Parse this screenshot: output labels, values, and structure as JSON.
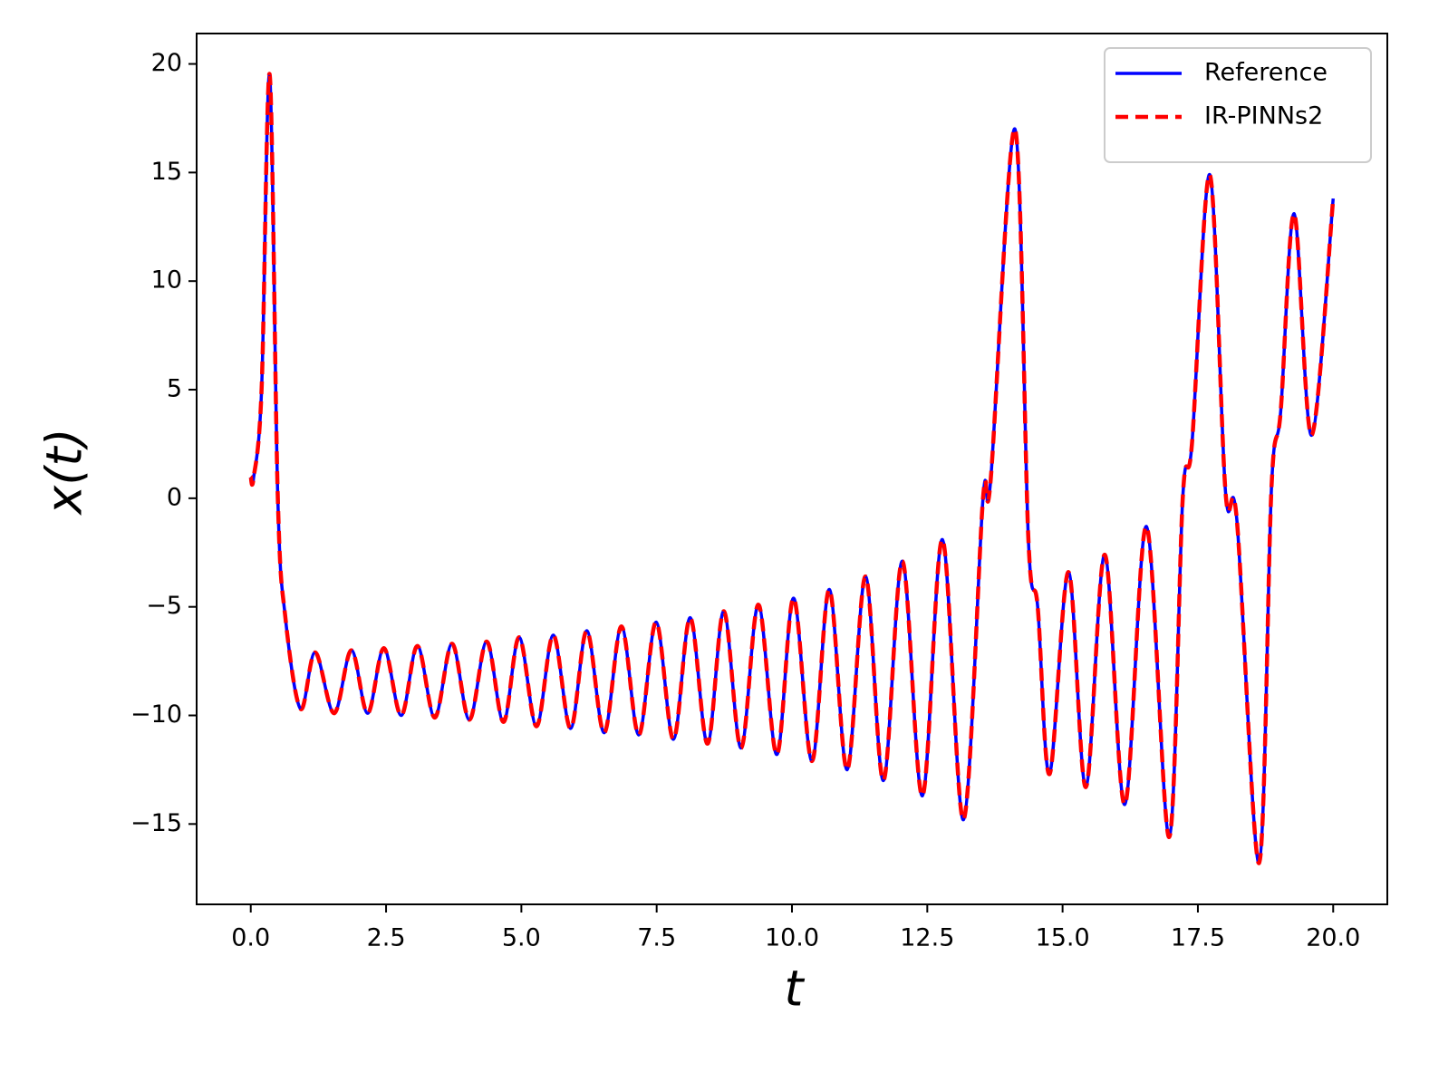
{
  "chart_data": {
    "type": "line",
    "xlabel": "t",
    "ylabel": "x(t)",
    "x": [
      0,
      0.05,
      0.2,
      0.35,
      0.5,
      0.64,
      0.92,
      1.19,
      1.54,
      1.86,
      2.16,
      2.46,
      2.78,
      3.08,
      3.4,
      3.72,
      4.04,
      4.36,
      4.67,
      4.96,
      5.28,
      5.59,
      5.91,
      6.21,
      6.53,
      6.85,
      7.17,
      7.49,
      7.81,
      8.12,
      8.44,
      8.74,
      9.06,
      9.38,
      9.72,
      10.03,
      10.37,
      10.69,
      11.02,
      11.36,
      11.69,
      12.04,
      12.41,
      12.78,
      13.17,
      13.53,
      13.67,
      14.12,
      14.37,
      14.54,
      14.76,
      15.11,
      15.43,
      15.78,
      16.15,
      16.55,
      16.97,
      17.22,
      17.39,
      17.72,
      18.01,
      18.22,
      18.63,
      18.86,
      19.03,
      19.28,
      19.6,
      20.0
    ],
    "series": [
      {
        "name": "Reference",
        "color": "#0000ff",
        "style": "solid",
        "values": [
          1.0,
          0.9,
          5.0,
          19.5,
          0.0,
          -5.5,
          -9.7,
          -7.1,
          -9.9,
          -7.0,
          -9.9,
          -6.9,
          -10.0,
          -6.8,
          -10.1,
          -6.7,
          -10.2,
          -6.6,
          -10.3,
          -6.4,
          -10.5,
          -6.3,
          -10.6,
          -6.1,
          -10.8,
          -5.9,
          -10.9,
          -5.7,
          -11.1,
          -5.5,
          -11.3,
          -5.2,
          -11.5,
          -4.9,
          -11.8,
          -4.6,
          -12.1,
          -4.2,
          -12.5,
          -3.6,
          -13.0,
          -2.9,
          -13.7,
          -1.9,
          -14.8,
          0.0,
          0.8,
          17.0,
          -2.0,
          -5.0,
          -12.7,
          -3.4,
          -13.3,
          -2.6,
          -14.1,
          -1.3,
          -15.6,
          0.0,
          2.5,
          14.9,
          0.3,
          -1.0,
          -16.8,
          0.5,
          4.0,
          13.1,
          2.9,
          13.8
        ]
      },
      {
        "name": "IR-PINNs2",
        "color": "#ff0000",
        "style": "dashed",
        "values": [
          1.0,
          0.9,
          5.0,
          19.5,
          0.0,
          -5.5,
          -9.7,
          -7.1,
          -9.9,
          -7.0,
          -9.9,
          -6.9,
          -10.0,
          -6.8,
          -10.1,
          -6.7,
          -10.2,
          -6.6,
          -10.3,
          -6.4,
          -10.5,
          -6.3,
          -10.6,
          -6.1,
          -10.8,
          -5.9,
          -10.9,
          -5.7,
          -11.1,
          -5.5,
          -11.3,
          -5.2,
          -11.5,
          -4.9,
          -11.8,
          -4.6,
          -12.1,
          -4.2,
          -12.5,
          -3.6,
          -13.0,
          -2.9,
          -13.7,
          -1.9,
          -14.8,
          0.0,
          0.8,
          17.0,
          -2.0,
          -5.0,
          -12.7,
          -3.4,
          -13.3,
          -2.6,
          -14.1,
          -1.3,
          -15.6,
          0.0,
          2.5,
          14.9,
          0.3,
          -1.0,
          -16.8,
          0.5,
          4.0,
          13.1,
          2.9,
          13.8
        ]
      }
    ],
    "xlim": [
      -1.0,
      21.0
    ],
    "ylim": [
      -18.7,
      21.4
    ],
    "xticks": [
      {
        "value": 0,
        "label": "0.0"
      },
      {
        "value": 2.5,
        "label": "2.5"
      },
      {
        "value": 5,
        "label": "5.0"
      },
      {
        "value": 7.5,
        "label": "7.5"
      },
      {
        "value": 10,
        "label": "10.0"
      },
      {
        "value": 12.5,
        "label": "12.5"
      },
      {
        "value": 15,
        "label": "15.0"
      },
      {
        "value": 17.5,
        "label": "17.5"
      },
      {
        "value": 20,
        "label": "20.0"
      }
    ],
    "yticks": [
      {
        "value": -15,
        "label": "−15"
      },
      {
        "value": -10,
        "label": "−10"
      },
      {
        "value": -5,
        "label": "−5"
      },
      0,
      5,
      10,
      15,
      20
    ],
    "legend": "upper right",
    "grid": false
  }
}
